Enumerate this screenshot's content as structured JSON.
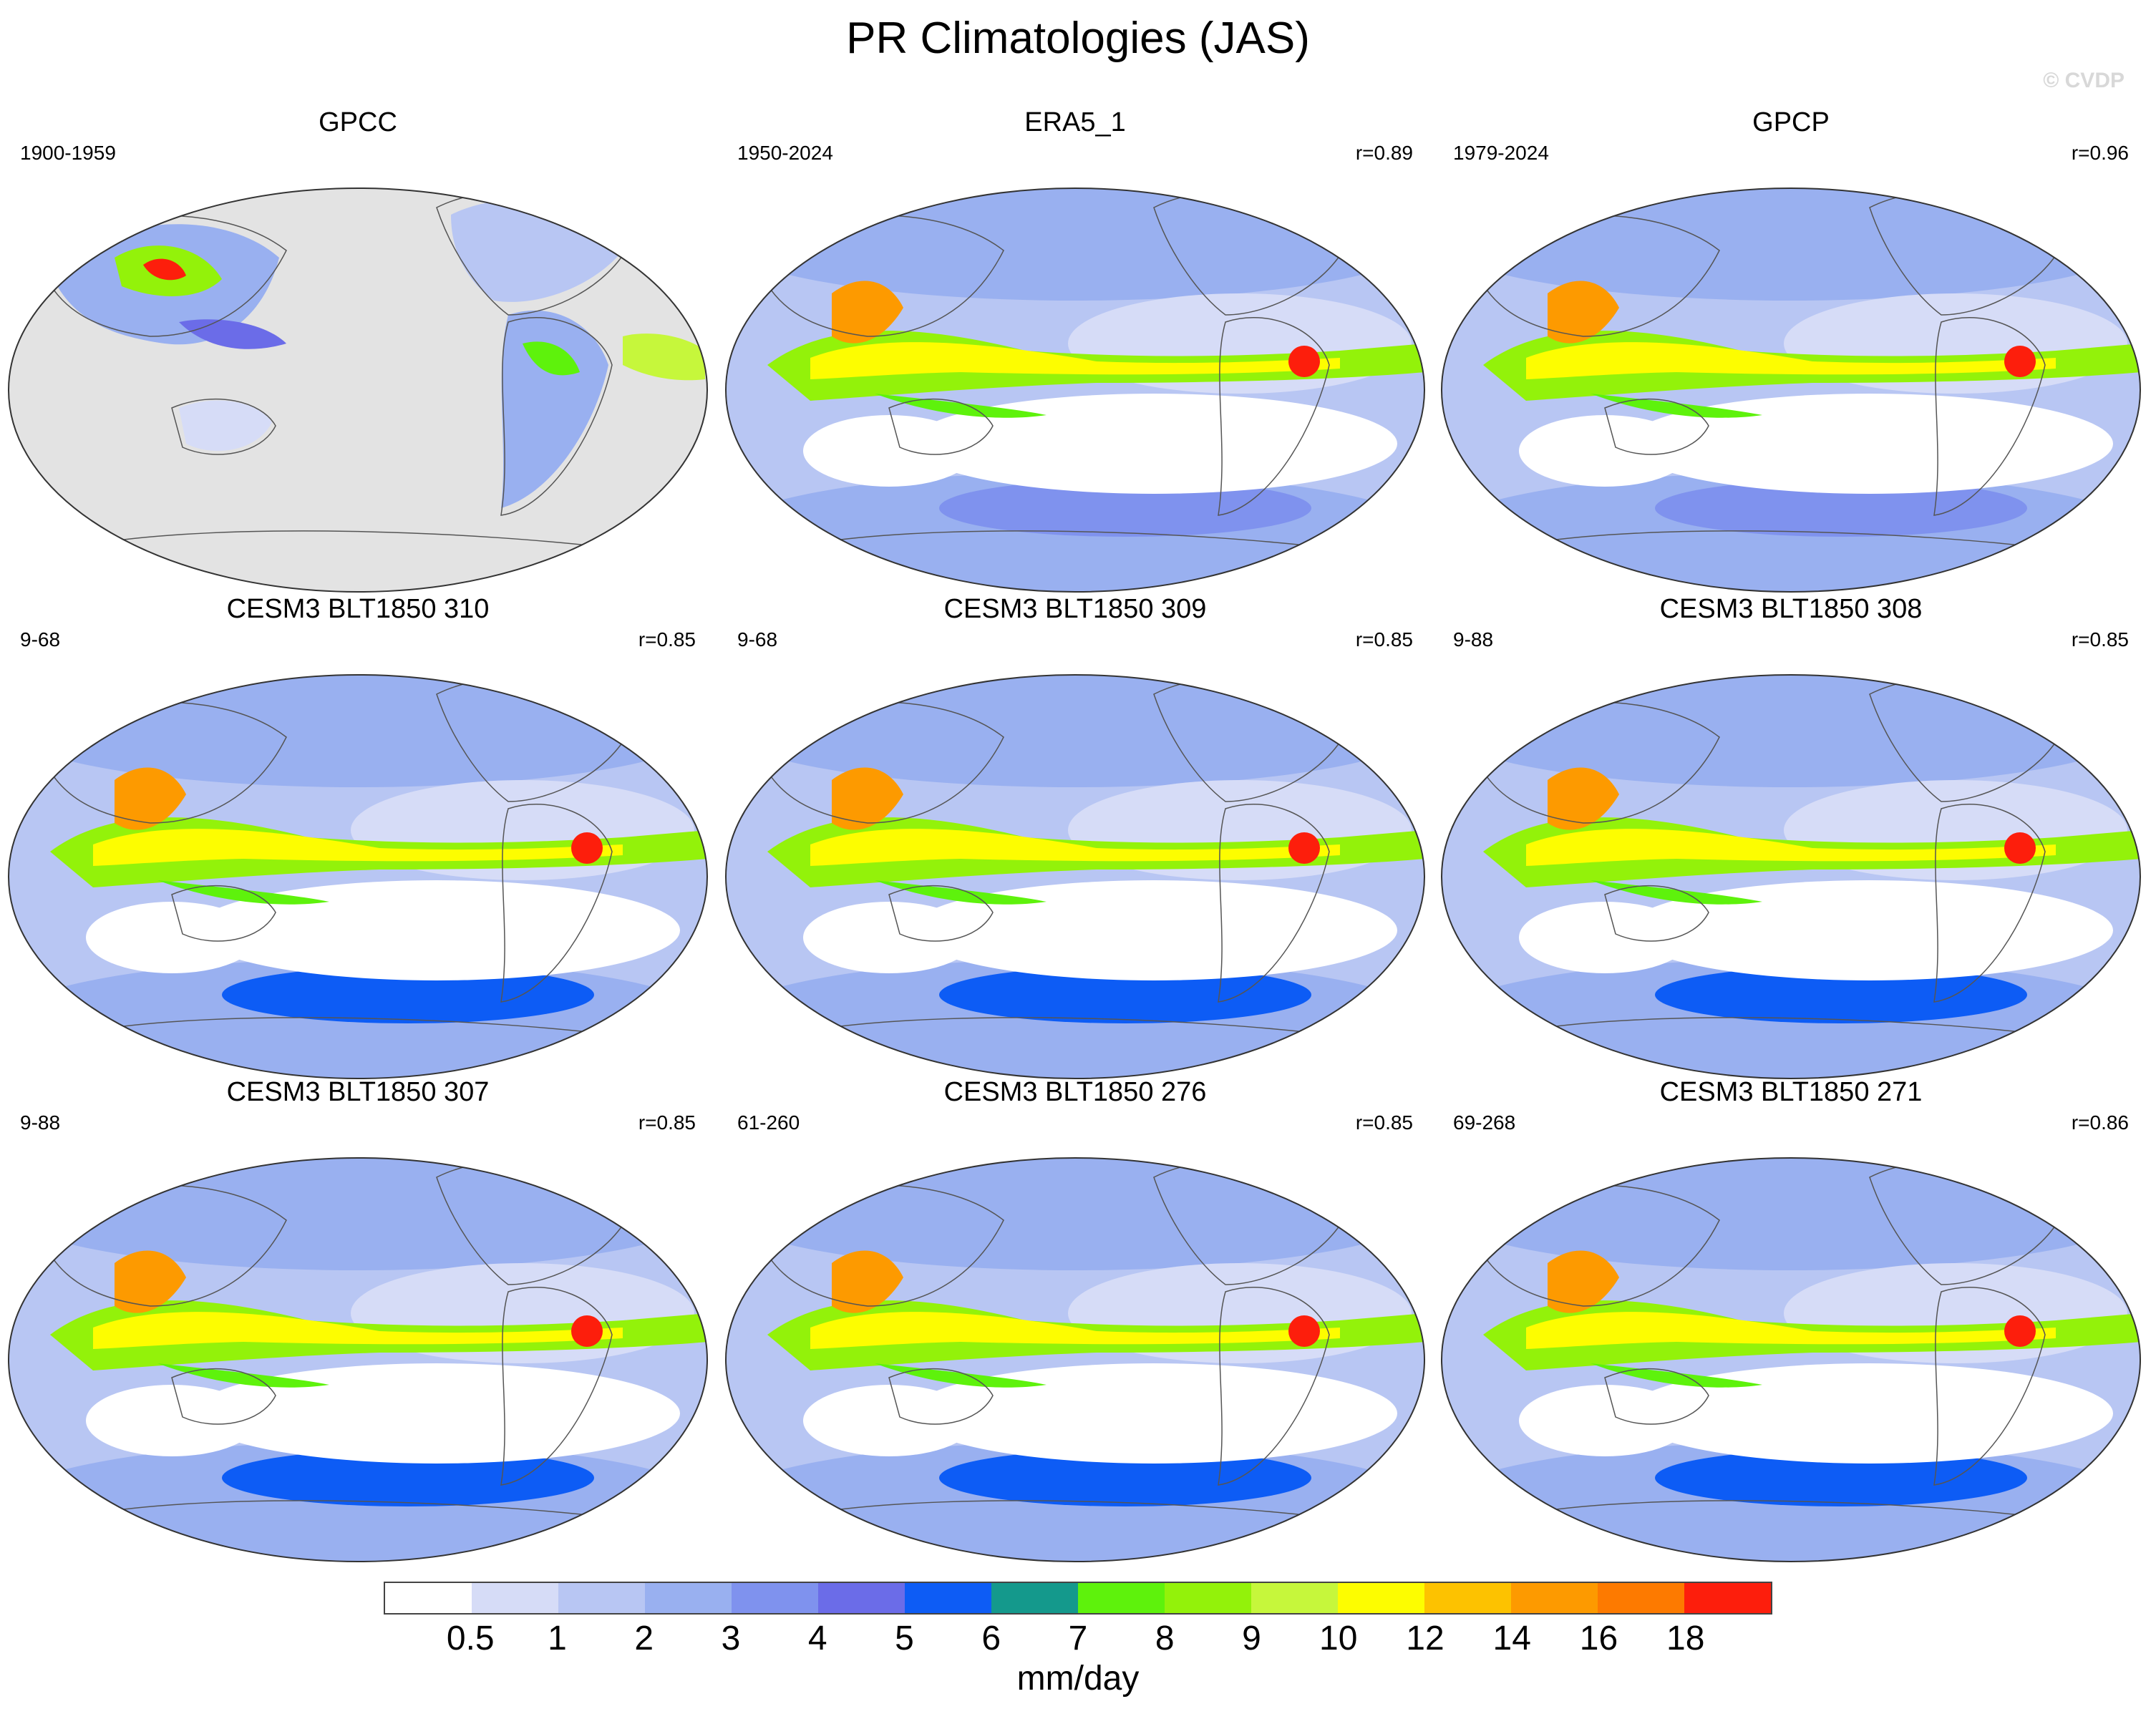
{
  "title": "PR Climatologies (JAS)",
  "credit": "© CVDP",
  "panels": [
    {
      "title": "GPCC",
      "period": "1900-1959",
      "corr": "",
      "style": "obs-land"
    },
    {
      "title": "ERA5_1",
      "period": "1950-2024",
      "corr": "r=0.89",
      "style": "reanalysis"
    },
    {
      "title": "GPCP",
      "period": "1979-2024",
      "corr": "r=0.96",
      "style": "obs"
    },
    {
      "title": "CESM3 BLT1850 310",
      "period": "9-68",
      "corr": "r=0.85",
      "style": "model"
    },
    {
      "title": "CESM3 BLT1850 309",
      "period": "9-68",
      "corr": "r=0.85",
      "style": "model"
    },
    {
      "title": "CESM3 BLT1850 308",
      "period": "9-88",
      "corr": "r=0.85",
      "style": "model"
    },
    {
      "title": "CESM3 BLT1850 307",
      "period": "9-88",
      "corr": "r=0.85",
      "style": "model"
    },
    {
      "title": "CESM3 BLT1850 276",
      "period": "61-260",
      "corr": "r=0.85",
      "style": "model"
    },
    {
      "title": "CESM3 BLT1850 271",
      "period": "69-268",
      "corr": "r=0.86",
      "style": "model"
    }
  ],
  "colorbar": {
    "colors": [
      "#ffffff",
      "#d6dcf7",
      "#b8c6f3",
      "#99b0f0",
      "#7f92ee",
      "#6b6ce8",
      "#0d5cf5",
      "#14998c",
      "#5ef20c",
      "#93f20a",
      "#c6f73b",
      "#fdfd00",
      "#fdc200",
      "#fd9a00",
      "#fd7a00",
      "#fd1e0c"
    ],
    "ticks": [
      "0.5",
      "1",
      "2",
      "3",
      "4",
      "5",
      "6",
      "7",
      "8",
      "9",
      "10",
      "12",
      "14",
      "16",
      "18"
    ],
    "units": "mm/day"
  }
}
